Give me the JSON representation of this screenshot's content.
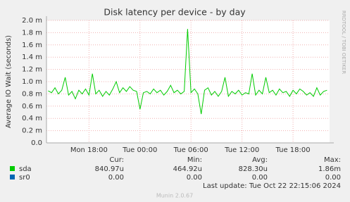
{
  "chart_data": {
    "type": "line",
    "title": "Disk latency per device - by day",
    "y_label": "Average IO Wait (seconds)",
    "side_label": "RRDTOOL / TOBI OETIKER",
    "xlim": [
      13.0,
      46.3
    ],
    "xticks": [
      {
        "value": 18,
        "label": "Mon 18:00"
      },
      {
        "value": 24,
        "label": "Tue 00:00"
      },
      {
        "value": 30,
        "label": "Tue 06:00"
      },
      {
        "value": 36,
        "label": "Tue 12:00"
      },
      {
        "value": 42,
        "label": "Tue 18:00"
      }
    ],
    "ylim": [
      0,
      2.0
    ],
    "yticks": [
      {
        "value": 0,
        "label": "0.0"
      },
      {
        "value": 0.2,
        "label": "0.2 m"
      },
      {
        "value": 0.4,
        "label": "0.4 m"
      },
      {
        "value": 0.6,
        "label": "0.6 m"
      },
      {
        "value": 0.8,
        "label": "0.8 m"
      },
      {
        "value": 1.0,
        "label": "1.0 m"
      },
      {
        "value": 1.2,
        "label": "1.2 m"
      },
      {
        "value": 1.4,
        "label": "1.4 m"
      },
      {
        "value": 1.6,
        "label": "1.6 m"
      },
      {
        "value": 1.8,
        "label": "1.8 m"
      },
      {
        "value": 2.0,
        "label": "2.0 m"
      }
    ],
    "grid": true,
    "x": [
      13.2,
      13.6,
      14,
      14.4,
      14.8,
      15.2,
      15.6,
      16,
      16.4,
      16.8,
      17.2,
      17.6,
      18,
      18.4,
      18.8,
      19.2,
      19.6,
      20,
      20.4,
      20.8,
      21.2,
      21.6,
      22,
      22.4,
      22.8,
      23.2,
      23.6,
      24,
      24.4,
      24.8,
      25.2,
      25.6,
      26,
      26.4,
      26.8,
      27.2,
      27.6,
      28,
      28.4,
      28.8,
      29.2,
      29.6,
      30,
      30.4,
      30.8,
      31.2,
      31.6,
      32,
      32.4,
      32.8,
      33.2,
      33.6,
      34,
      34.4,
      34.8,
      35.2,
      35.6,
      36,
      36.4,
      36.8,
      37.2,
      37.6,
      38,
      38.4,
      38.8,
      39.2,
      39.6,
      40,
      40.4,
      40.8,
      41.2,
      41.6,
      42,
      42.4,
      42.8,
      43.2,
      43.6,
      44,
      44.4,
      44.8,
      45.2,
      45.6,
      46
    ],
    "legend_headers": [
      "Cur:",
      "Min:",
      "Avg:",
      "Max:"
    ],
    "series": [
      {
        "name": "sda",
        "color": "#00cc00",
        "values": [
          0.85,
          0.82,
          0.9,
          0.8,
          0.86,
          1.07,
          0.78,
          0.84,
          0.72,
          0.86,
          0.8,
          0.88,
          0.78,
          1.13,
          0.8,
          0.86,
          0.76,
          0.84,
          0.78,
          0.88,
          1.0,
          0.82,
          0.9,
          0.84,
          0.92,
          0.86,
          0.84,
          0.55,
          0.82,
          0.84,
          0.8,
          0.88,
          0.82,
          0.86,
          0.78,
          0.84,
          0.94,
          0.82,
          0.86,
          0.8,
          0.84,
          1.86,
          0.82,
          0.88,
          0.8,
          0.47,
          0.86,
          0.9,
          0.78,
          0.84,
          0.76,
          0.84,
          1.07,
          0.76,
          0.84,
          0.8,
          0.86,
          0.78,
          0.82,
          0.8,
          1.13,
          0.78,
          0.86,
          0.8,
          1.07,
          0.82,
          0.86,
          0.78,
          0.88,
          0.82,
          0.84,
          0.76,
          0.86,
          0.8,
          0.88,
          0.84,
          0.78,
          0.82,
          0.76,
          0.9,
          0.78,
          0.84,
          0.86
        ],
        "stats": [
          "840.97u",
          "464.92u",
          "828.30u",
          "1.86m"
        ]
      },
      {
        "name": "sr0",
        "color": "#0066b3",
        "stats": [
          "0.00",
          "0.00",
          "0.00",
          "0.00"
        ]
      }
    ],
    "last_update": "Last update: Tue Oct 22 22:15:06 2024",
    "footer": "Munin 2.0.67"
  }
}
